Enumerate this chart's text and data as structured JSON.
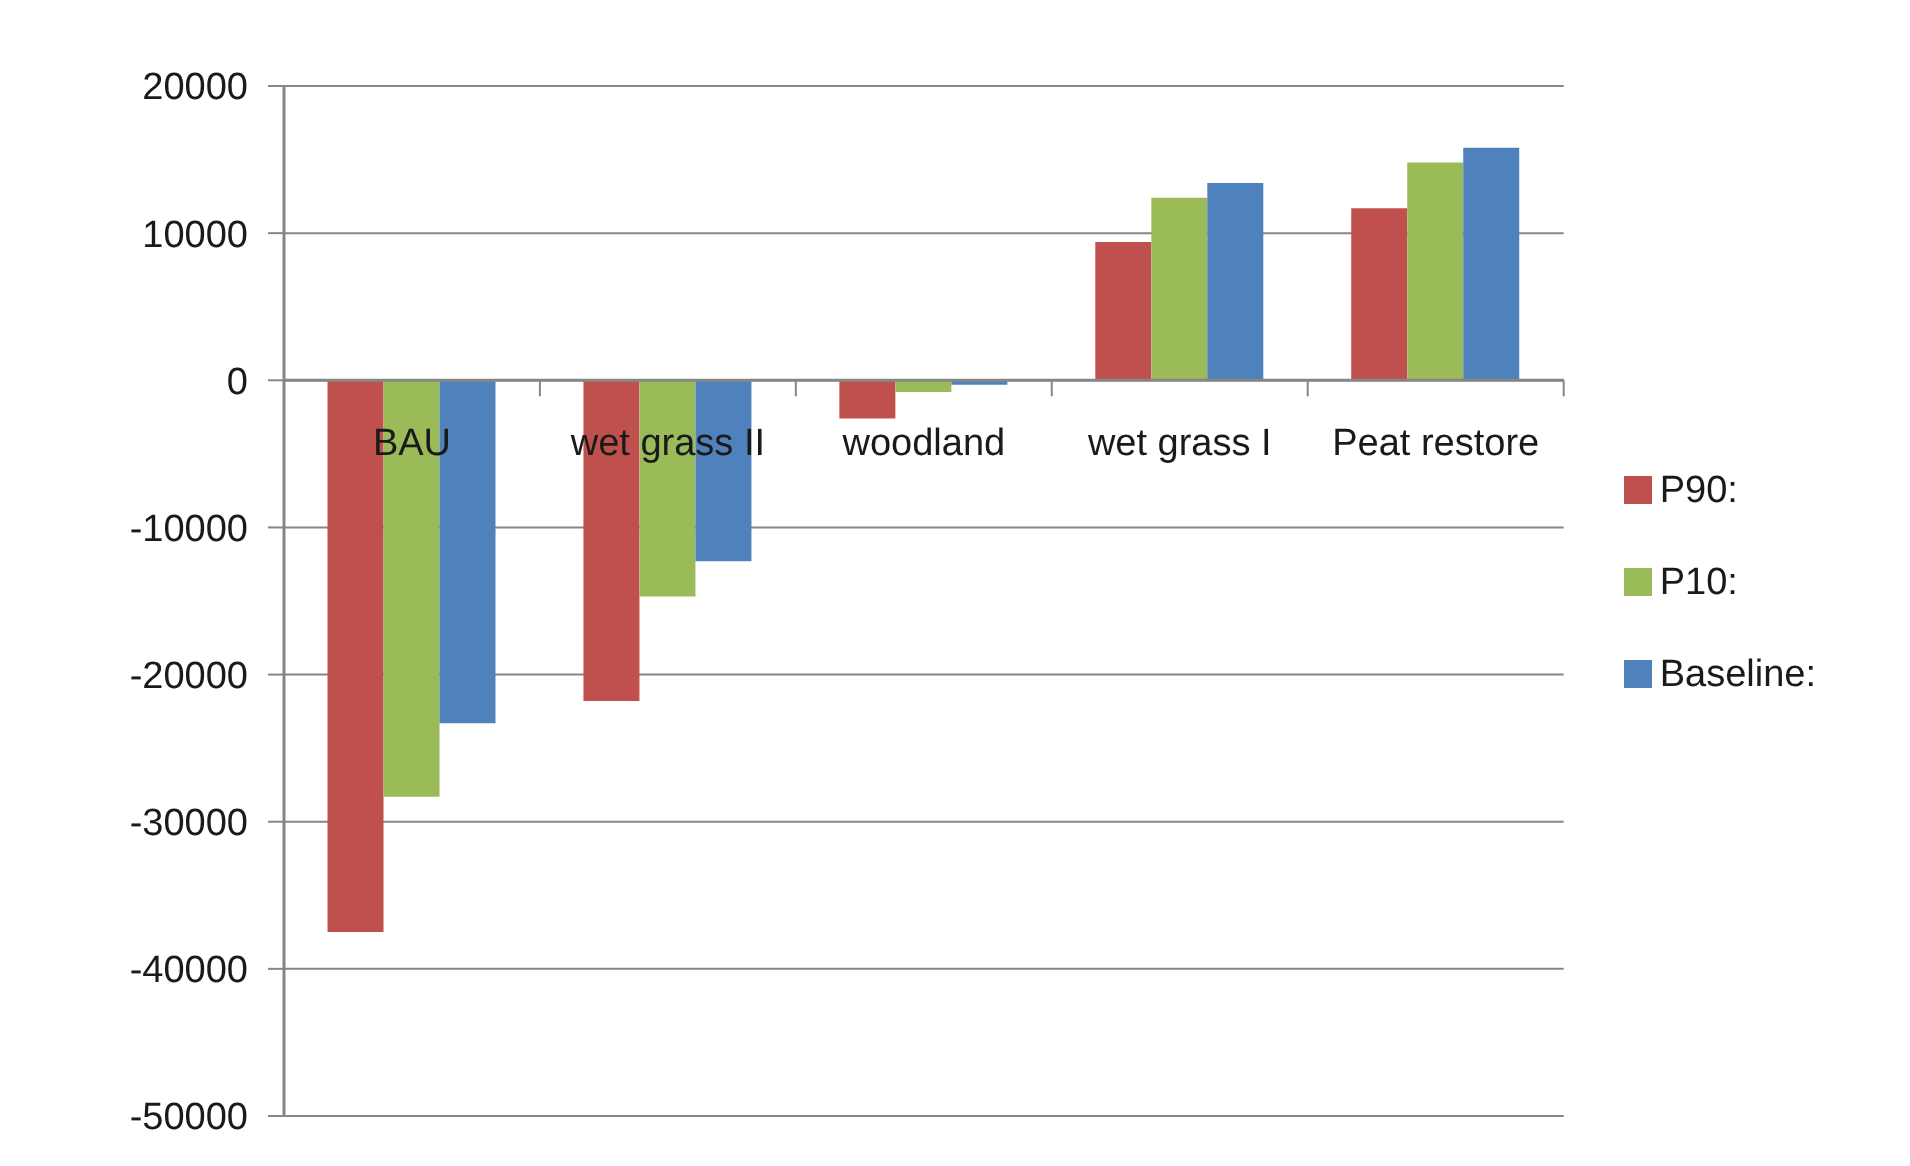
{
  "chart_data": {
    "type": "bar",
    "categories": [
      "BAU",
      "wet grass II",
      "woodland",
      "wet grass I",
      "Peat restore"
    ],
    "series": [
      {
        "name": "P90:",
        "color": "#c0504d",
        "values": [
          -37500,
          -21800,
          -2600,
          9400,
          11700
        ]
      },
      {
        "name": "P10:",
        "color": "#9bbb59",
        "values": [
          -28300,
          -14700,
          -800,
          12400,
          14800
        ]
      },
      {
        "name": "Baseline:",
        "color": "#4f81bd",
        "values": [
          -23300,
          -12300,
          -300,
          13400,
          15800
        ]
      }
    ],
    "ylim": [
      -50000,
      20000
    ],
    "yticks": [
      -50000,
      -40000,
      -30000,
      -20000,
      -10000,
      0,
      10000,
      20000
    ],
    "grid": "y",
    "legend": "right"
  }
}
